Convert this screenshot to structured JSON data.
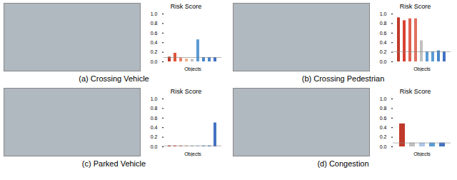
{
  "chart_data": [
    {
      "type": "bar",
      "title": "Risk Score",
      "xlabel": "Objects",
      "caption": "(a) Crossing Vehicle",
      "categories": [
        null,
        null,
        null,
        null,
        null,
        null,
        null,
        null,
        null
      ],
      "values": [
        0.1,
        0.18,
        0.08,
        0.06,
        0.05,
        0.46,
        0.09,
        0.09,
        0.09
      ],
      "colors": [
        "#c0392b",
        "#e05535",
        "#e8836a",
        "#f0b090",
        "#c0c0c0",
        "#5b9bd5",
        "#4a86c8",
        "#4a86c8",
        "#4472c4"
      ],
      "threshold": 0.09,
      "ylim": [
        0,
        1.0
      ],
      "yticks": [
        {
          "value": 0.0,
          "label": "0.0"
        },
        0.2,
        0.4,
        0.6,
        0.8,
        {
          "value": 1.0,
          "label": "1.0"
        }
      ],
      "tick_labels": "y",
      "grid": false
    },
    {
      "type": "bar",
      "title": "Risk Score",
      "xlabel": "Objects",
      "caption": "(b) Crossing Pedestrian",
      "categories": [
        null,
        null,
        null,
        null,
        null,
        null,
        null,
        null,
        null
      ],
      "values": [
        0.92,
        0.86,
        0.9,
        0.9,
        0.44,
        0.21,
        0.21,
        0.23,
        0.21
      ],
      "colors": [
        "#c0392b",
        "#d94030",
        "#e06050",
        "#e07060",
        "#c0c0c0",
        "#5b9bd5",
        "#5b9bd5",
        "#4a86c8",
        "#4472c4"
      ],
      "threshold": 0.21,
      "ylim": [
        0,
        1.0
      ],
      "yticks": [
        {
          "value": 0.0,
          "label": "0.0"
        },
        0.2,
        0.4,
        0.6,
        0.8,
        {
          "value": 1.0,
          "label": "1.0"
        }
      ],
      "tick_labels": "y",
      "grid": false
    },
    {
      "type": "bar",
      "title": "Risk Score",
      "xlabel": "Objects",
      "caption": "(c) Parked Vehicle",
      "categories": [
        null,
        null,
        null,
        null,
        null,
        null,
        null,
        null,
        null
      ],
      "values": [
        0.02,
        0.02,
        0.02,
        0.02,
        0.02,
        0.02,
        0.02,
        0.02,
        0.5
      ],
      "colors": [
        "#c0392b",
        "#e05535",
        "#e8836a",
        "#f0b090",
        "#c0c0c0",
        "#adc6e8",
        "#5b9bd5",
        "#4a86c8",
        "#4472c4"
      ],
      "threshold": 0.02,
      "ylim": [
        0,
        1.0
      ],
      "yticks": [
        {
          "value": 0.0,
          "label": "0.0"
        },
        0.2,
        0.4,
        0.6,
        0.8,
        {
          "value": 1.0,
          "label": "1.0"
        }
      ],
      "tick_labels": "y",
      "grid": false
    },
    {
      "type": "bar",
      "title": "Risk Score",
      "xlabel": "Objects",
      "caption": "(d) Congestion",
      "categories": [
        null,
        null,
        null,
        null,
        null
      ],
      "values": [
        0.48,
        0.08,
        0.08,
        0.08,
        0.08
      ],
      "colors": [
        "#c0392b",
        "#c0c0c0",
        "#adc6e8",
        "#5b9bd5",
        "#4472c4"
      ],
      "threshold": 0.08,
      "ylim": [
        0,
        1.0
      ],
      "yticks": [
        {
          "value": 0.0,
          "label": "0.0"
        },
        0.2,
        0.4,
        0.6,
        0.8,
        {
          "value": 1.0,
          "label": "1.0"
        }
      ],
      "tick_labels": "y",
      "grid": false
    }
  ]
}
